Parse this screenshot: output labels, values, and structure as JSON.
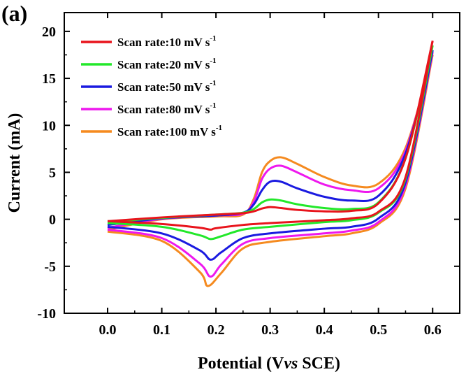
{
  "chart_data": {
    "type": "line",
    "panel_label": "(a)",
    "xlabel_parts": [
      "Potential (V",
      "vs",
      " SCE)"
    ],
    "ylabel": "Current (mA)",
    "xlim": [
      -0.08,
      0.65
    ],
    "ylim": [
      -10,
      22
    ],
    "x_ticks": [
      0.0,
      0.1,
      0.2,
      0.3,
      0.4,
      0.5,
      0.6
    ],
    "x_tick_labels": [
      "0.0",
      "0.1",
      "0.2",
      "0.3",
      "0.4",
      "0.5",
      "0.6"
    ],
    "y_ticks": [
      -10,
      -5,
      0,
      5,
      10,
      15,
      20
    ],
    "y_tick_labels": [
      "-10",
      "-5",
      "0",
      "5",
      "10",
      "15",
      "20"
    ],
    "grid": false,
    "legend_position": "top-left",
    "series": [
      {
        "name": "Scan rate:10 mV s-1",
        "color": "#e8141c",
        "forward": [
          [
            0.0,
            -0.2
          ],
          [
            0.1,
            0.2
          ],
          [
            0.2,
            0.5
          ],
          [
            0.25,
            0.65
          ],
          [
            0.27,
            0.85
          ],
          [
            0.285,
            1.15
          ],
          [
            0.3,
            1.3
          ],
          [
            0.32,
            1.2
          ],
          [
            0.35,
            1.0
          ],
          [
            0.4,
            0.85
          ],
          [
            0.45,
            0.9
          ],
          [
            0.5,
            1.7
          ],
          [
            0.55,
            6.5
          ],
          [
            0.6,
            19.0
          ]
        ],
        "reverse": [
          [
            0.6,
            19.0
          ],
          [
            0.55,
            4.5
          ],
          [
            0.5,
            0.8
          ],
          [
            0.45,
            0.1
          ],
          [
            0.4,
            -0.1
          ],
          [
            0.3,
            -0.4
          ],
          [
            0.25,
            -0.6
          ],
          [
            0.2,
            -0.95
          ],
          [
            0.19,
            -1.1
          ],
          [
            0.17,
            -0.9
          ],
          [
            0.1,
            -0.5
          ],
          [
            0.0,
            -0.2
          ]
        ]
      },
      {
        "name": "Scan rate:20 mV s-1",
        "color": "#22e82a",
        "forward": [
          [
            0.0,
            -0.3
          ],
          [
            0.1,
            0.15
          ],
          [
            0.2,
            0.5
          ],
          [
            0.25,
            0.7
          ],
          [
            0.27,
            1.1
          ],
          [
            0.285,
            1.8
          ],
          [
            0.3,
            2.1
          ],
          [
            0.32,
            2.0
          ],
          [
            0.35,
            1.6
          ],
          [
            0.4,
            1.2
          ],
          [
            0.45,
            1.1
          ],
          [
            0.5,
            1.8
          ],
          [
            0.55,
            6.5
          ],
          [
            0.6,
            18.5
          ]
        ],
        "reverse": [
          [
            0.6,
            18.5
          ],
          [
            0.55,
            4.3
          ],
          [
            0.5,
            0.7
          ],
          [
            0.45,
            -0.1
          ],
          [
            0.4,
            -0.3
          ],
          [
            0.3,
            -0.8
          ],
          [
            0.25,
            -1.1
          ],
          [
            0.21,
            -1.8
          ],
          [
            0.19,
            -2.1
          ],
          [
            0.17,
            -1.7
          ],
          [
            0.1,
            -0.8
          ],
          [
            0.0,
            -0.4
          ]
        ]
      },
      {
        "name": "Scan rate:50 mV s-1",
        "color": "#1a1ae0",
        "forward": [
          [
            0.0,
            -0.6
          ],
          [
            0.1,
            0.1
          ],
          [
            0.2,
            0.4
          ],
          [
            0.25,
            0.7
          ],
          [
            0.27,
            1.6
          ],
          [
            0.285,
            3.1
          ],
          [
            0.3,
            4.0
          ],
          [
            0.32,
            4.0
          ],
          [
            0.35,
            3.3
          ],
          [
            0.4,
            2.4
          ],
          [
            0.45,
            2.0
          ],
          [
            0.5,
            2.5
          ],
          [
            0.55,
            7.0
          ],
          [
            0.6,
            18.0
          ]
        ],
        "reverse": [
          [
            0.6,
            18.0
          ],
          [
            0.55,
            3.9
          ],
          [
            0.5,
            0.1
          ],
          [
            0.45,
            -0.8
          ],
          [
            0.4,
            -1.0
          ],
          [
            0.3,
            -1.5
          ],
          [
            0.25,
            -2.0
          ],
          [
            0.21,
            -3.5
          ],
          [
            0.19,
            -4.3
          ],
          [
            0.17,
            -3.3
          ],
          [
            0.1,
            -1.5
          ],
          [
            0.0,
            -0.8
          ]
        ]
      },
      {
        "name": "Scan rate:80 mV s-1",
        "color": "#ee18ee",
        "forward": [
          [
            0.0,
            -0.9
          ],
          [
            0.1,
            0.05
          ],
          [
            0.2,
            0.4
          ],
          [
            0.25,
            0.6
          ],
          [
            0.27,
            1.9
          ],
          [
            0.285,
            4.3
          ],
          [
            0.3,
            5.4
          ],
          [
            0.32,
            5.7
          ],
          [
            0.35,
            5.0
          ],
          [
            0.4,
            3.7
          ],
          [
            0.45,
            3.1
          ],
          [
            0.5,
            3.3
          ],
          [
            0.55,
            7.3
          ],
          [
            0.6,
            17.8
          ]
        ],
        "reverse": [
          [
            0.6,
            17.8
          ],
          [
            0.55,
            3.6
          ],
          [
            0.5,
            -0.3
          ],
          [
            0.45,
            -1.2
          ],
          [
            0.4,
            -1.5
          ],
          [
            0.3,
            -2.0
          ],
          [
            0.25,
            -2.6
          ],
          [
            0.21,
            -4.8
          ],
          [
            0.19,
            -6.1
          ],
          [
            0.17,
            -4.7
          ],
          [
            0.1,
            -2.0
          ],
          [
            0.0,
            -1.1
          ]
        ]
      },
      {
        "name": "Scan rate:100 mV s-1",
        "color": "#f58a1f",
        "forward": [
          [
            0.0,
            -1.1
          ],
          [
            0.1,
            0.0
          ],
          [
            0.2,
            0.3
          ],
          [
            0.25,
            0.5
          ],
          [
            0.27,
            2.2
          ],
          [
            0.285,
            5.0
          ],
          [
            0.3,
            6.2
          ],
          [
            0.32,
            6.6
          ],
          [
            0.35,
            5.9
          ],
          [
            0.4,
            4.5
          ],
          [
            0.45,
            3.6
          ],
          [
            0.5,
            3.8
          ],
          [
            0.55,
            7.6
          ],
          [
            0.6,
            17.5
          ]
        ],
        "reverse": [
          [
            0.6,
            17.5
          ],
          [
            0.55,
            3.3
          ],
          [
            0.5,
            -0.5
          ],
          [
            0.45,
            -1.5
          ],
          [
            0.4,
            -1.8
          ],
          [
            0.3,
            -2.4
          ],
          [
            0.25,
            -3.1
          ],
          [
            0.21,
            -5.7
          ],
          [
            0.185,
            -7.1
          ],
          [
            0.17,
            -5.6
          ],
          [
            0.1,
            -2.3
          ],
          [
            0.0,
            -1.3
          ]
        ]
      }
    ]
  }
}
